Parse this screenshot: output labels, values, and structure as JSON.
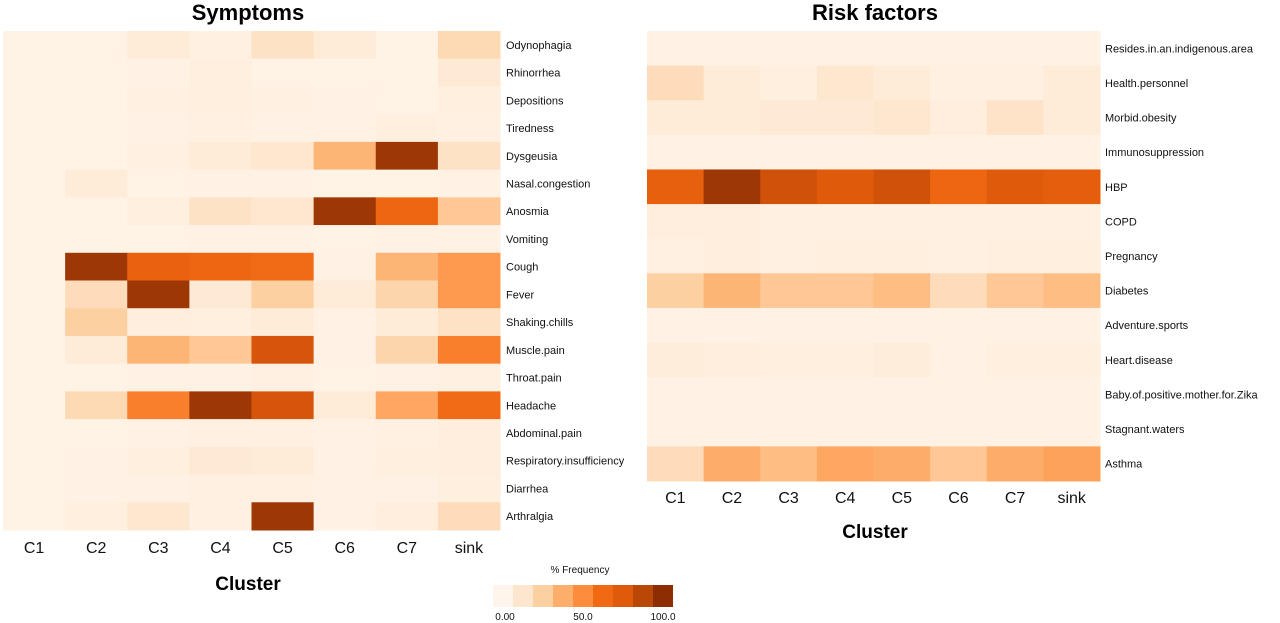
{
  "chart_data": [
    {
      "type": "heatmap",
      "title": "Symptoms",
      "xlabel": "Cluster",
      "categories": [
        "C1",
        "C2",
        "C3",
        "C4",
        "C5",
        "C6",
        "C7",
        "sink"
      ],
      "rows": [
        "Odynophagia",
        "Rhinorrhea",
        "Depositions",
        "Tiredness",
        "Dysgeusia",
        "Nasal.congestion",
        "Anosmia",
        "Vomiting",
        "Cough",
        "Fever",
        "Shaking.chills",
        "Muscle.pain",
        "Throat.pain",
        "Headache",
        "Abdominal.pain",
        "Respiratory.insufficiency",
        "Diarrhea",
        "Arthralgia"
      ],
      "values": [
        [
          2,
          2,
          8,
          4,
          15,
          8,
          2,
          20
        ],
        [
          2,
          2,
          3,
          5,
          2,
          2,
          2,
          10
        ],
        [
          2,
          2,
          4,
          5,
          4,
          3,
          2,
          5
        ],
        [
          2,
          2,
          3,
          4,
          3,
          3,
          5,
          4
        ],
        [
          2,
          2,
          4,
          8,
          12,
          35,
          95,
          15
        ],
        [
          2,
          8,
          2,
          3,
          3,
          2,
          2,
          3
        ],
        [
          2,
          2,
          5,
          15,
          12,
          95,
          65,
          28
        ],
        [
          2,
          2,
          2,
          3,
          3,
          2,
          3,
          3
        ],
        [
          2,
          95,
          68,
          65,
          62,
          3,
          35,
          45
        ],
        [
          2,
          18,
          95,
          10,
          25,
          8,
          22,
          45
        ],
        [
          2,
          25,
          6,
          5,
          8,
          3,
          8,
          15
        ],
        [
          2,
          8,
          35,
          28,
          78,
          3,
          22,
          55
        ],
        [
          2,
          2,
          3,
          3,
          4,
          2,
          3,
          4
        ],
        [
          2,
          20,
          55,
          95,
          78,
          8,
          40,
          62
        ],
        [
          2,
          2,
          3,
          4,
          4,
          3,
          4,
          6
        ],
        [
          2,
          3,
          5,
          10,
          8,
          3,
          5,
          6
        ],
        [
          2,
          3,
          3,
          4,
          4,
          3,
          3,
          5
        ],
        [
          2,
          5,
          12,
          4,
          95,
          3,
          6,
          18
        ]
      ]
    },
    {
      "type": "heatmap",
      "title": "Risk factors",
      "xlabel": "Cluster",
      "categories": [
        "C1",
        "C2",
        "C3",
        "C4",
        "C5",
        "C6",
        "C7",
        "sink"
      ],
      "rows": [
        "Resides.in.an.indigenous.area",
        "Health.personnel",
        "Morbid.obesity",
        "Immunosuppression",
        "HBP",
        "COPD",
        "Pregnancy",
        "Diabetes",
        "Adventure.sports",
        "Heart.disease",
        "Baby.of.positive.mother.for.Zika",
        "Stagnant.waters",
        "Asthma"
      ],
      "values": [
        [
          3,
          3,
          3,
          3,
          3,
          3,
          3,
          3
        ],
        [
          18,
          8,
          5,
          12,
          8,
          4,
          4,
          8
        ],
        [
          8,
          8,
          10,
          10,
          12,
          6,
          14,
          8
        ],
        [
          3,
          3,
          3,
          3,
          3,
          3,
          3,
          3
        ],
        [
          70,
          95,
          80,
          75,
          80,
          65,
          75,
          72
        ],
        [
          6,
          6,
          4,
          4,
          4,
          4,
          4,
          4
        ],
        [
          4,
          6,
          4,
          5,
          5,
          4,
          5,
          5
        ],
        [
          25,
          35,
          28,
          28,
          32,
          18,
          28,
          32
        ],
        [
          3,
          3,
          3,
          3,
          3,
          3,
          3,
          3
        ],
        [
          7,
          6,
          5,
          5,
          7,
          3,
          5,
          5
        ],
        [
          3,
          3,
          3,
          3,
          3,
          3,
          3,
          3
        ],
        [
          3,
          3,
          3,
          3,
          3,
          3,
          3,
          3
        ],
        [
          18,
          38,
          32,
          40,
          38,
          28,
          38,
          42
        ]
      ]
    }
  ],
  "legend": {
    "title": "% Frequency",
    "min_label": "0.00",
    "mid_label": "50.0",
    "max_label": "100.0",
    "colors": [
      "#fff5eb",
      "#fee6ce",
      "#fdd0a2",
      "#fdae6b",
      "#fd8d3c",
      "#f16913",
      "#e05a0b",
      "#b84708",
      "#8c2d04"
    ]
  }
}
